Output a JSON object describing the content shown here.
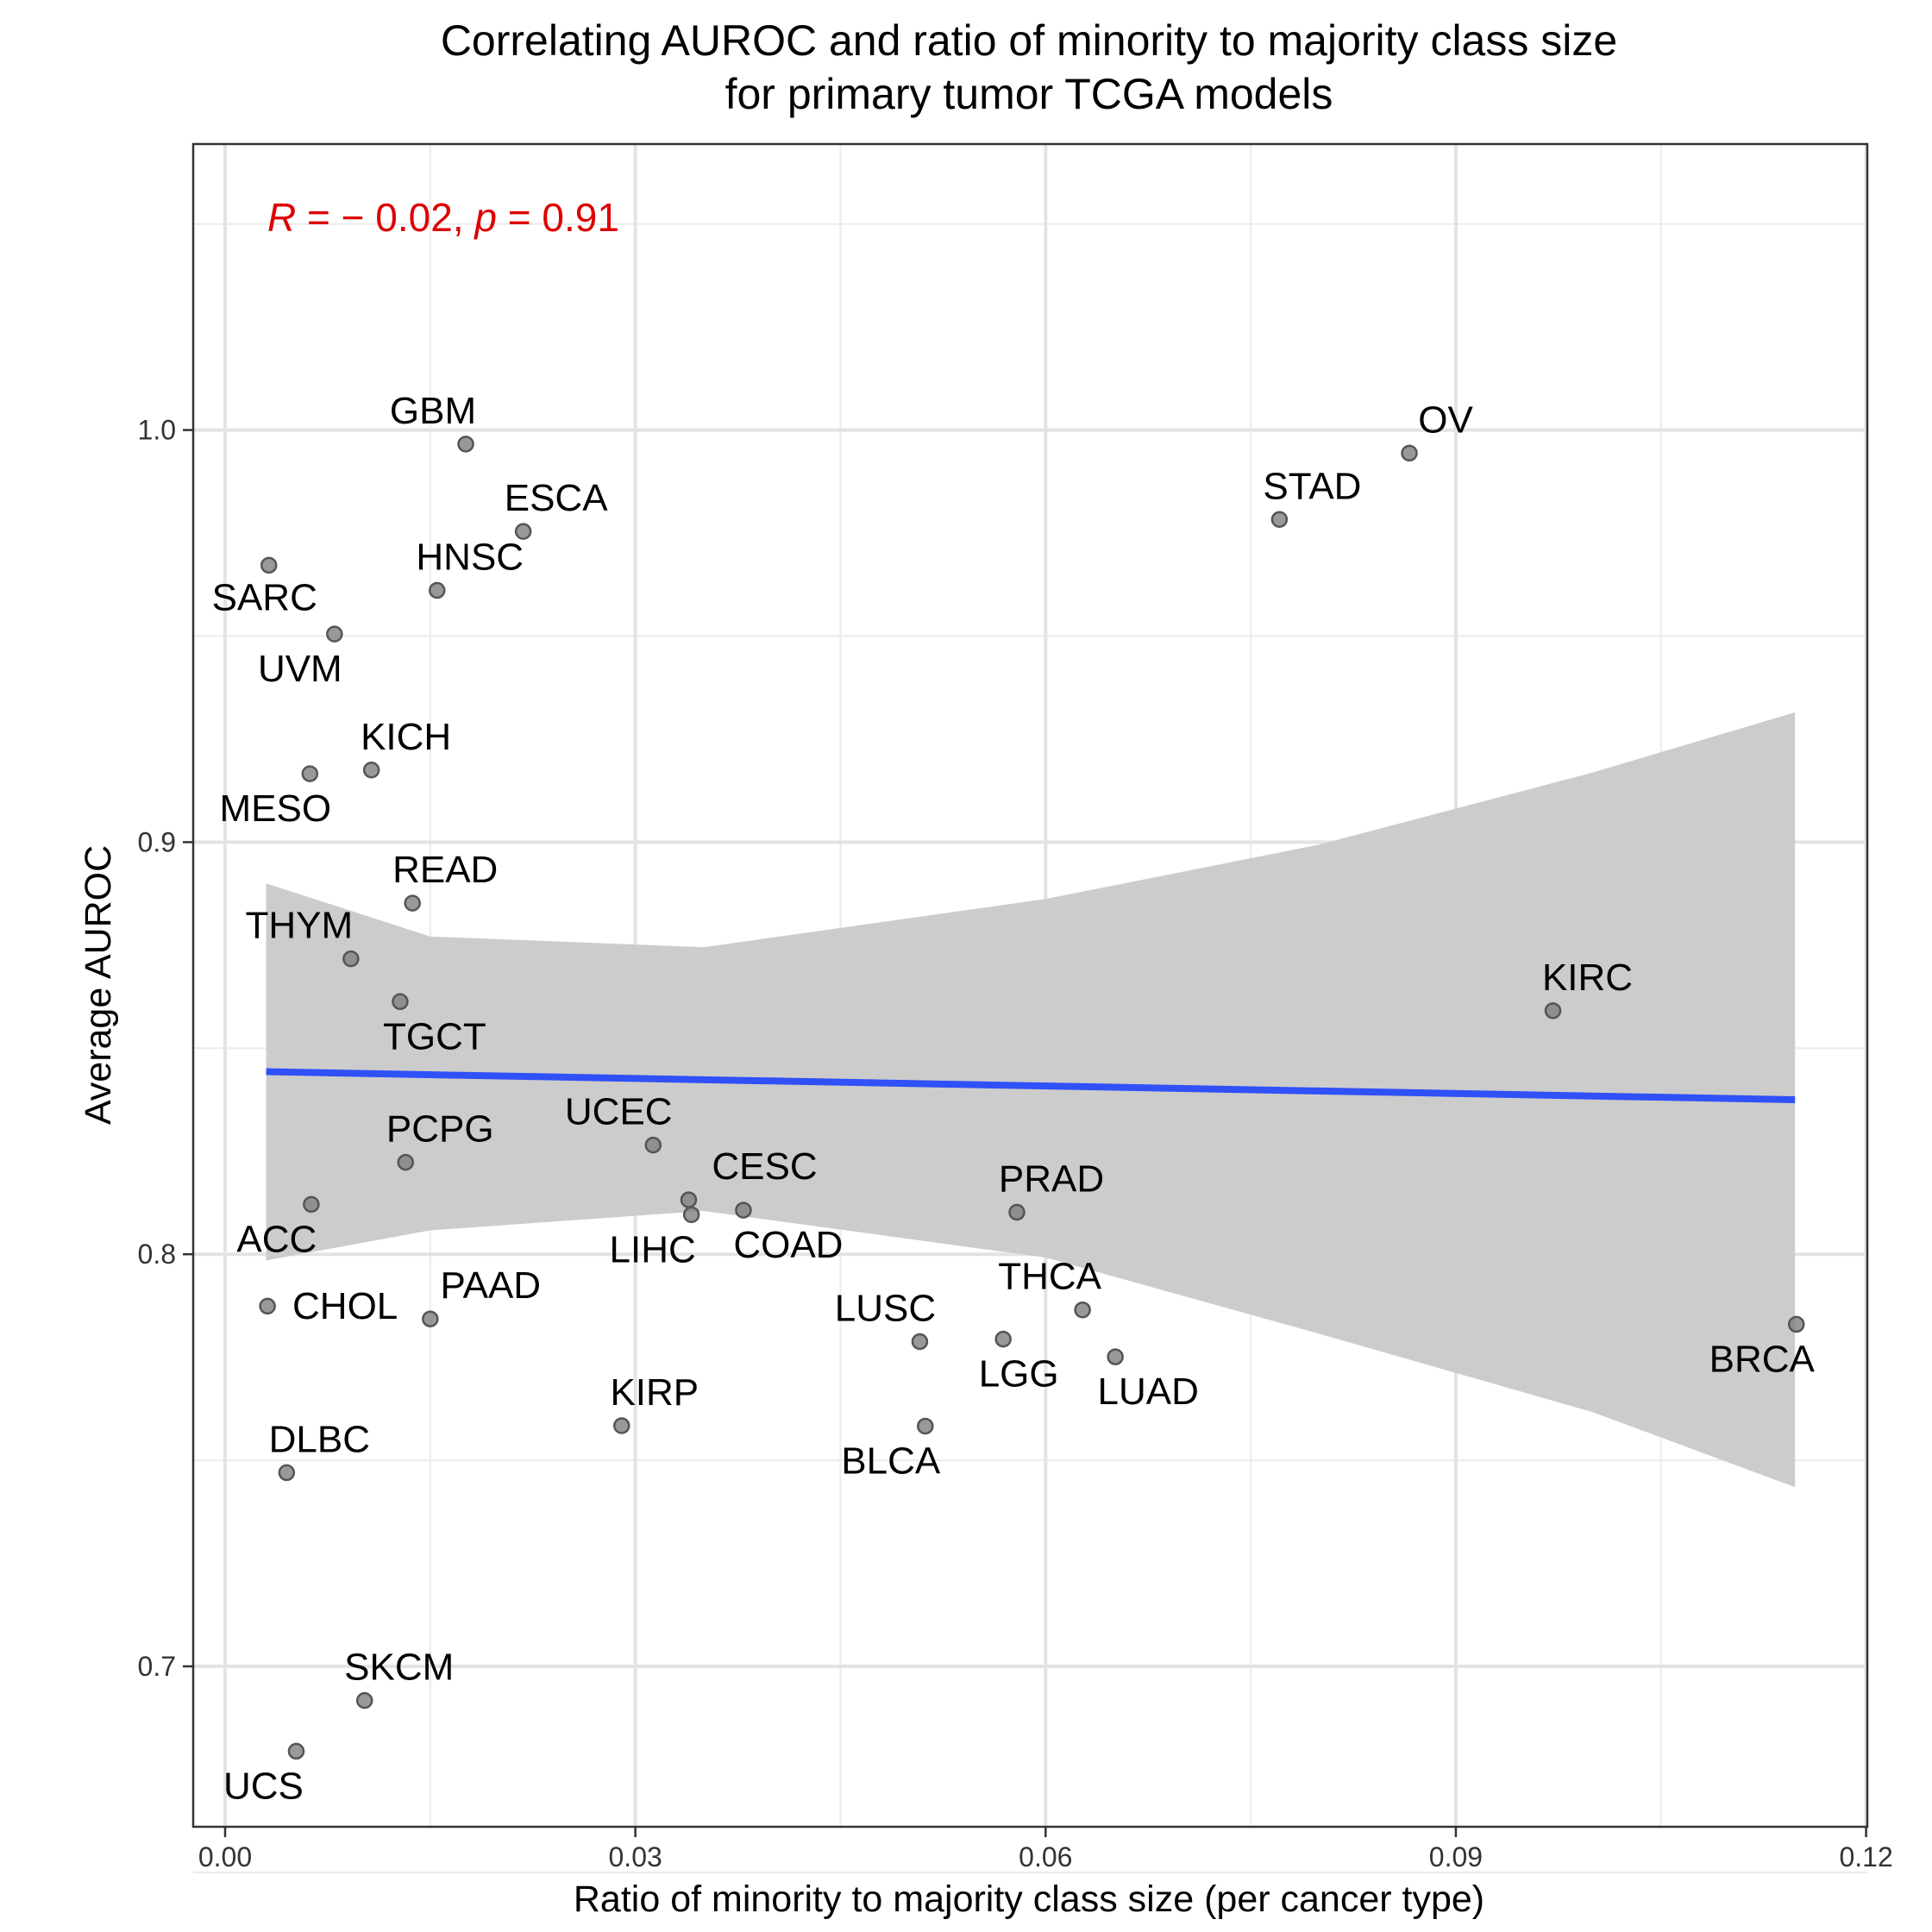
{
  "chart_data": {
    "type": "scatter",
    "title": "Correlating AUROC and ratio of minority to majority class size",
    "subtitle": "for primary tumor TCGA models",
    "xlabel": "Ratio of minority to majority class size (per cancer type)",
    "ylabel": "Average AUROC",
    "xlim": [
      -0.0024,
      0.1202
    ],
    "ylim": [
      0.6625,
      1.0655
    ],
    "xticks": [
      0.0,
      0.03,
      0.06,
      0.09,
      0.12
    ],
    "xtick_labels": [
      "0.00",
      "0.03",
      "0.06",
      "0.09",
      "0.12"
    ],
    "yticks": [
      0.7,
      0.8,
      0.9,
      1.0
    ],
    "ytick_labels": [
      "0.7",
      "0.8",
      "0.9",
      "1.0"
    ],
    "grid": true,
    "annotation": {
      "R_symbol": "R",
      "R_text": " = − 0.02, ",
      "p_symbol": "p",
      "p_text": " = 0.91",
      "color": "#dd0000"
    },
    "fit": {
      "x": [
        0.003,
        0.1148
      ],
      "y": [
        0.8443,
        0.8375
      ],
      "line_color": "#3050f8",
      "ribbon_color": "#cccccc",
      "ci_x": [
        0.003,
        0.015,
        0.035,
        0.06,
        0.08,
        0.1,
        0.1148
      ],
      "ci_upper": [
        0.89,
        0.8771,
        0.8745,
        0.8862,
        0.8994,
        0.9169,
        0.9315
      ],
      "ci_lower": [
        0.7985,
        0.8058,
        0.8105,
        0.7992,
        0.7807,
        0.7617,
        0.7435
      ]
    },
    "points": [
      {
        "label": "GBM",
        "x": 0.0176,
        "y": 0.9966
      },
      {
        "label": "OV",
        "x": 0.0866,
        "y": 0.9944
      },
      {
        "label": "STAD",
        "x": 0.0771,
        "y": 0.9783
      },
      {
        "label": "ESCA",
        "x": 0.0218,
        "y": 0.9754
      },
      {
        "label": "SARC",
        "x": 0.0032,
        "y": 0.9672
      },
      {
        "label": "HNSC",
        "x": 0.0155,
        "y": 0.9611
      },
      {
        "label": "UVM",
        "x": 0.008,
        "y": 0.9505
      },
      {
        "label": "KICH",
        "x": 0.0107,
        "y": 0.9175
      },
      {
        "label": "MESO",
        "x": 0.0062,
        "y": 0.9166
      },
      {
        "label": "READ",
        "x": 0.0137,
        "y": 0.8852
      },
      {
        "label": "THYM",
        "x": 0.0092,
        "y": 0.8717
      },
      {
        "label": "TGCT",
        "x": 0.0128,
        "y": 0.8613
      },
      {
        "label": "KIRC",
        "x": 0.0971,
        "y": 0.8591
      },
      {
        "label": "UCEC",
        "x": 0.0313,
        "y": 0.8265
      },
      {
        "label": "PCPG",
        "x": 0.0132,
        "y": 0.8223
      },
      {
        "label": "CESC",
        "x": 0.0339,
        "y": 0.8132
      },
      {
        "label": "ACC",
        "x": 0.0063,
        "y": 0.8121
      },
      {
        "label": "COAD",
        "x": 0.0379,
        "y": 0.8107
      },
      {
        "label": "PRAD",
        "x": 0.0579,
        "y": 0.8102
      },
      {
        "label": "LIHC",
        "x": 0.0341,
        "y": 0.8096
      },
      {
        "label": "CHOL",
        "x": 0.0031,
        "y": 0.7874
      },
      {
        "label": "THCA",
        "x": 0.0627,
        "y": 0.7865
      },
      {
        "label": "PAAD",
        "x": 0.015,
        "y": 0.7843
      },
      {
        "label": "BRCA",
        "x": 0.1149,
        "y": 0.783
      },
      {
        "label": "LGG",
        "x": 0.0569,
        "y": 0.7794
      },
      {
        "label": "LUSC",
        "x": 0.0508,
        "y": 0.7788
      },
      {
        "label": "LUAD",
        "x": 0.0651,
        "y": 0.7751
      },
      {
        "label": "KIRP",
        "x": 0.029,
        "y": 0.7584
      },
      {
        "label": "BLCA",
        "x": 0.0512,
        "y": 0.7583
      },
      {
        "label": "DLBC",
        "x": 0.0045,
        "y": 0.747
      },
      {
        "label": "SKCM",
        "x": 0.0102,
        "y": 0.6917
      },
      {
        "label": "UCS",
        "x": 0.0052,
        "y": 0.6794
      }
    ],
    "point_color": "#808080"
  }
}
